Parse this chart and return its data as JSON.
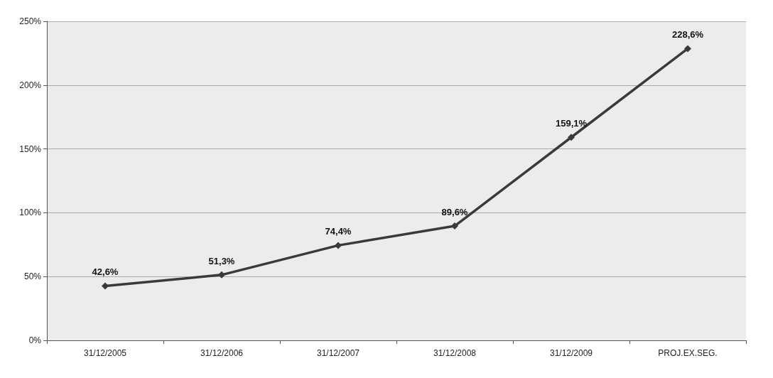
{
  "chart_data": {
    "type": "line",
    "categories": [
      "31/12/2005",
      "31/12/2006",
      "31/12/2007",
      "31/12/2008",
      "31/12/2009",
      "PROJ.EX.SEG."
    ],
    "series": [
      {
        "color": "#3a3a3a",
        "values": [
          42.6,
          51.3,
          74.4,
          89.6,
          159.1,
          228.6
        ],
        "value_labels": [
          "42,6%",
          "51,3%",
          "74,4%",
          "89,6%",
          "159,1%",
          "228,6%"
        ]
      }
    ],
    "ylim": [
      0,
      250
    ],
    "yticks": [
      {
        "value": 0,
        "label": "0%"
      },
      {
        "value": 50,
        "label": "50%"
      },
      {
        "value": 100,
        "label": "100%"
      },
      {
        "value": 150,
        "label": "150%"
      },
      {
        "value": 200,
        "label": "200%"
      },
      {
        "value": 250,
        "label": "250%"
      }
    ],
    "grid": "y",
    "marker": "diamond",
    "line_style": "solid"
  }
}
